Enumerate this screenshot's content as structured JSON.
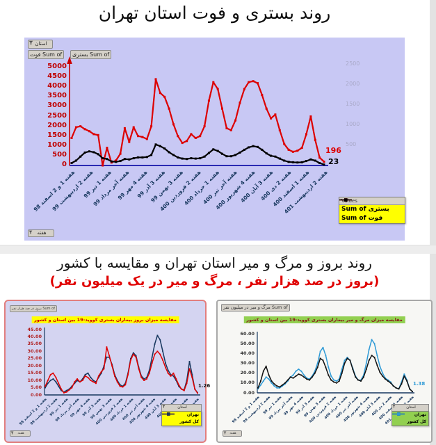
{
  "section1": {
    "title": "روند بستری و فوت استان تهران",
    "panel": {
      "filter_button": "استان",
      "field_buttons": [
        "Sum of فوت",
        "Sum of بستری"
      ],
      "week_filter_button": "هفته",
      "legend_header": "Values",
      "background_color": "#c8c8f4"
    }
  },
  "section2": {
    "title": "روند بروز و مرگ و میر استان تهران و مقایسه با کشور",
    "subtitle": "(بروز در صد هزار نفر ، مرگ و میر در یک میلیون نفر)"
  },
  "incidence_panel": {
    "field_button": "Sum of بروز در صد هزار نفر",
    "filter_button": "استان",
    "week_filter_button": "هفته"
  },
  "mortality_panel": {
    "field_button": "Sum of مرگ و میر در میلیون نفر",
    "filter_button": "استان",
    "week_filter_button": "هفته"
  },
  "chart_data": [
    {
      "type": "line",
      "title": "روند بستری و فوت استان تهران",
      "x_unit": "week",
      "weeks_per_point": 2,
      "categories": [
        "هفته 1 و 2 اسفند 98",
        "هفته 2 اردیبهشت 99",
        "هفته 1 تیر 99",
        "هفته آخر مرداد 99",
        "هفته 4 مهر 99",
        "هفته 3 آذر 99",
        "هفته 3 بهمن 99",
        "هفته 2 فروردین 400",
        "هفته 1 خرداد 400",
        "هفته آخر تیر 400",
        "هفته 4 شهریور 400",
        "هفته 3 آبان 400",
        "هفته 2 دی 400",
        "هفته 1 اسفند 400",
        "هفته 2 اردیبهشت 401"
      ],
      "y_left": {
        "min": 0,
        "max": 5000,
        "tick_step": 500,
        "color": "#c00000"
      },
      "y_right": {
        "min": 0,
        "max": 2500,
        "tick_step": 500,
        "color": "#a9a9c8"
      },
      "grid": false,
      "legend_position": "bottom-right",
      "series": [
        {
          "name": "Sum of بستری",
          "color": "#dd0000",
          "axis": "left",
          "values": [
            1400,
            1950,
            2000,
            1850,
            1750,
            1600,
            1550,
            0,
            900,
            150,
            250,
            600,
            1900,
            1200,
            1950,
            1500,
            1450,
            1350,
            2000,
            4400,
            3700,
            3500,
            2900,
            2100,
            1500,
            1150,
            1250,
            1600,
            1400,
            1500,
            2000,
            3300,
            4250,
            3900,
            2900,
            1900,
            1800,
            2300,
            3200,
            3900,
            4250,
            4300,
            4200,
            3600,
            2900,
            2400,
            2600,
            1800,
            1100,
            800,
            700,
            750,
            900,
            1600,
            2500,
            1300,
            400,
            196
          ]
        },
        {
          "name": "Sum of فوت",
          "color": "#000000",
          "axis": "right",
          "values": [
            60,
            120,
            220,
            320,
            350,
            330,
            280,
            180,
            160,
            100,
            90,
            110,
            160,
            150,
            180,
            200,
            200,
            210,
            260,
            520,
            480,
            420,
            330,
            260,
            200,
            170,
            160,
            180,
            170,
            180,
            220,
            310,
            400,
            360,
            290,
            230,
            230,
            260,
            320,
            390,
            450,
            480,
            460,
            390,
            300,
            240,
            220,
            170,
            120,
            90,
            80,
            75,
            80,
            110,
            150,
            120,
            60,
            23
          ]
        }
      ],
      "end_labels": {
        "bestari": "196",
        "fot": "23"
      }
    },
    {
      "type": "line",
      "title": "مقایسه میزان بروز بیماران بستری کووید-19 بین استان و کشور",
      "x_unit": "week",
      "weeks_per_point": 2,
      "categories": [
        "هفته 1 و 2 اسفند 98",
        "هفته 2 اردیبهشت 99",
        "هفته 1 تیر 99",
        "هفته آخر مرداد 99",
        "هفته 4 مهر 99",
        "هفته 3 آذر 99",
        "هفته 3 بهمن 99",
        "هفته 2 فروردین 400",
        "هفته 1 خرداد 400",
        "هفته آخر تیر 400",
        "هفته 4 شهریور 400",
        "هفته 3 آبان 400",
        "هفته 2 دی 400",
        "هفته 1 اسفند 400",
        "هفته 2 اردیبهشت 401"
      ],
      "y": {
        "min": 0,
        "max": 45,
        "tick_step": 5,
        "tick_format": "0.00"
      },
      "grid": false,
      "legend_position": "bottom-right",
      "series": [
        {
          "name": "تهران",
          "color": "#e00000",
          "values": [
            6,
            10,
            14,
            15,
            12,
            8,
            4,
            1.5,
            2,
            3.5,
            5,
            9,
            11,
            9,
            10,
            13,
            12,
            10,
            9,
            8,
            13,
            16,
            18,
            33,
            27,
            20,
            13,
            9,
            6,
            5.5,
            7,
            14,
            24,
            28,
            26,
            18,
            12,
            10,
            11,
            15,
            22,
            28,
            30,
            28,
            24,
            19,
            15,
            13,
            15,
            11,
            7,
            4,
            3,
            8,
            18,
            12,
            4,
            1.26
          ]
        },
        {
          "name": "کل کشور",
          "color": "#17375e",
          "values": [
            5,
            8,
            10,
            11,
            9,
            6,
            3,
            2,
            3,
            4,
            6,
            8,
            10,
            9,
            11,
            14,
            15,
            12,
            10,
            9,
            12,
            15,
            20,
            26,
            26,
            21,
            14,
            10,
            7,
            6,
            8,
            15,
            25,
            29,
            27,
            19,
            13,
            11,
            12,
            17,
            26,
            35,
            41,
            38,
            30,
            22,
            17,
            14,
            13,
            10,
            6,
            4,
            3.5,
            10,
            23,
            14,
            4,
            1.6
          ]
        }
      ],
      "end_label": "1.26"
    },
    {
      "type": "line",
      "title": "مقایسه میزان مرگ و میر بیماران بستری کووید-19 بین استان و کشور",
      "x_unit": "week",
      "weeks_per_point": 2,
      "categories": [
        "هفته 1 و 2 اسفند 98",
        "هفته 2 اردیبهشت 99",
        "هفته 1 تیر 99",
        "هفته آخر مرداد 99",
        "هفته 4 مهر 99",
        "هفته 3 آذر 99",
        "هفته 3 بهمن 99",
        "هفته 2 فروردین 400",
        "هفته 1 خرداد 400",
        "هفته آخر تیر 400",
        "هفته 4 شهریور 400",
        "هفته 3 آبان 400",
        "هفته 2 دی 400",
        "هفته 1 اسفند 400",
        "هفته 2 اردیبهشت 401"
      ],
      "y": {
        "min": 0,
        "max": 60,
        "tick_step": 10,
        "tick_format": "0.00"
      },
      "grid": false,
      "legend_position": "bottom-right",
      "series": [
        {
          "name": "تهران",
          "color": "#111111",
          "values": [
            5,
            12,
            22,
            27,
            18,
            12,
            9,
            7,
            6,
            8,
            10,
            13,
            16,
            15,
            17,
            19,
            18,
            16,
            14,
            13,
            16,
            20,
            26,
            35,
            33,
            26,
            18,
            13,
            11,
            10,
            12,
            20,
            30,
            35,
            33,
            24,
            16,
            13,
            12,
            16,
            24,
            33,
            38,
            36,
            28,
            21,
            17,
            14,
            12,
            10,
            7,
            5,
            4,
            9,
            17,
            12,
            4,
            1.3
          ]
        },
        {
          "name": "کل کشور",
          "color": "#2e9ad6",
          "values": [
            4,
            8,
            12,
            16,
            14,
            10,
            7,
            5,
            5,
            7,
            9,
            12,
            16,
            18,
            22,
            24,
            22,
            18,
            15,
            14,
            17,
            22,
            30,
            42,
            46,
            38,
            26,
            17,
            13,
            12,
            14,
            24,
            33,
            36,
            33,
            25,
            17,
            13,
            13,
            18,
            30,
            44,
            54,
            50,
            38,
            27,
            20,
            15,
            13,
            11,
            7,
            5,
            4,
            11,
            19,
            13,
            4,
            1.38
          ]
        }
      ],
      "end_label": "1.38"
    }
  ]
}
